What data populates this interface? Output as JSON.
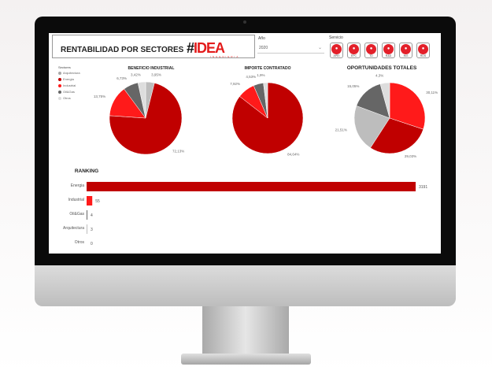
{
  "header": {
    "title": "RENTABILIDAD POR SECTORES",
    "logo": "IDEA",
    "logo_sub": "INGENIERIA"
  },
  "filters": {
    "year_label": "Año",
    "year_value": "2020",
    "service_label": "Servicio"
  },
  "services": [
    {
      "label": "APEI"
    },
    {
      "label": "EPC"
    },
    {
      "label": "TD"
    },
    {
      "label": "R&D"
    },
    {
      "label": "INS"
    },
    {
      "label": "RDS"
    }
  ],
  "legend": {
    "title": "Sectores",
    "items": [
      {
        "label": "Arquitectura",
        "color": "#a9a9a9"
      },
      {
        "label": "Energia",
        "color": "#c00000"
      },
      {
        "label": "Industrial",
        "color": "#ff1a1a"
      },
      {
        "label": "Oil&Gas",
        "color": "#666666"
      },
      {
        "label": "Otros",
        "color": "#dddddd"
      }
    ]
  },
  "chart_data": [
    {
      "type": "pie",
      "title": "BENEFICIO INDUSTRIAL",
      "slices": [
        {
          "sector": "Arquitectura",
          "value": 3.95,
          "label": "3,95%",
          "color": "#bdbdbd"
        },
        {
          "sector": "Energia",
          "value": 72.13,
          "label": "72,13%",
          "color": "#c00000"
        },
        {
          "sector": "Industrial",
          "value": 13.75,
          "label": "13,75%",
          "color": "#ff1a1a"
        },
        {
          "sector": "Oil&Gas",
          "value": 6.73,
          "label": "6,73%",
          "color": "#666666"
        },
        {
          "sector": "Otros",
          "value": 3.42,
          "label": "3,42%",
          "color": "#dddddd"
        }
      ]
    },
    {
      "type": "pie",
      "title": "IMPORTE CONTRATADO",
      "slices": [
        {
          "sector": "Energia",
          "value": 84.64,
          "label": "84,64%",
          "color": "#c00000"
        },
        {
          "sector": "Industrial",
          "value": 7.92,
          "label": "7,92%",
          "color": "#ff1a1a"
        },
        {
          "sector": "Oil&Gas",
          "value": 4.53,
          "label": "4,53%",
          "color": "#666666"
        },
        {
          "sector": "Otros",
          "value": 1.9,
          "label": "1,9%",
          "color": "#dddddd"
        }
      ]
    },
    {
      "type": "pie",
      "title": "OPORTUNIDADES TOTALES",
      "slices": [
        {
          "sector": "Industrial",
          "value": 30.11,
          "label": "30,11%",
          "color": "#ff1a1a"
        },
        {
          "sector": "Energia",
          "value": 29.03,
          "label": "29,03%",
          "color": "#c00000"
        },
        {
          "sector": "Arquitectura",
          "value": 21.51,
          "label": "21,51%",
          "color": "#bdbdbd"
        },
        {
          "sector": "Oil&Gas",
          "value": 15.05,
          "label": "15,05%",
          "color": "#666666"
        },
        {
          "sector": "Otros",
          "value": 4.3,
          "label": "4,3%",
          "color": "#dddddd"
        }
      ]
    },
    {
      "type": "bar",
      "title": "RANKING",
      "categories": [
        "Energia",
        "Industrial",
        "Oil&Gas",
        "Arquitectura",
        "Otros"
      ],
      "values": [
        3191,
        55,
        4,
        3,
        0
      ],
      "colors": [
        "#c00000",
        "#ff1a1a",
        "#666666",
        "#bdbdbd",
        "#dddddd"
      ]
    }
  ]
}
